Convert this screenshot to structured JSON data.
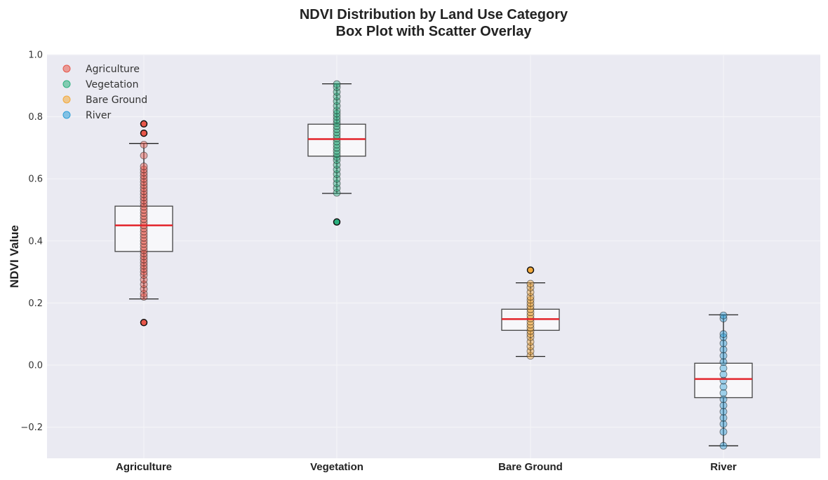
{
  "chart_data": {
    "type": "box",
    "title": "NDVI Distribution by Land Use Category",
    "subtitle": "Box Plot with Scatter Overlay",
    "xlabel": "",
    "ylabel": "NDVI Value",
    "ylim": [
      -0.3,
      1.0
    ],
    "yticks": [
      -0.2,
      0.0,
      0.2,
      0.4,
      0.6,
      0.8,
      1.0
    ],
    "ytick_labels": [
      "−0.2",
      "0.0",
      "0.2",
      "0.4",
      "0.6",
      "0.8",
      "1.0"
    ],
    "grid": true,
    "legend_position": "top-left",
    "categories": [
      "Agriculture",
      "Vegetation",
      "Bare Ground",
      "River"
    ],
    "series": [
      {
        "name": "Agriculture",
        "color": "#e8574a",
        "whisker_low": 0.213,
        "q1": 0.366,
        "median": 0.45,
        "q3": 0.512,
        "whisker_high": 0.714,
        "outliers": [
          0.137,
          0.747,
          0.777
        ],
        "points": [
          0.22,
          0.23,
          0.245,
          0.26,
          0.275,
          0.29,
          0.3,
          0.31,
          0.32,
          0.33,
          0.34,
          0.35,
          0.36,
          0.37,
          0.38,
          0.39,
          0.4,
          0.41,
          0.42,
          0.43,
          0.44,
          0.45,
          0.46,
          0.47,
          0.48,
          0.49,
          0.5,
          0.51,
          0.52,
          0.53,
          0.54,
          0.55,
          0.56,
          0.57,
          0.58,
          0.59,
          0.6,
          0.61,
          0.62,
          0.63,
          0.64,
          0.675,
          0.71
        ]
      },
      {
        "name": "Vegetation",
        "color": "#2bb07e",
        "whisker_low": 0.553,
        "q1": 0.673,
        "median": 0.728,
        "q3": 0.776,
        "whisker_high": 0.906,
        "outliers": [
          0.461
        ],
        "points": [
          0.555,
          0.57,
          0.585,
          0.6,
          0.615,
          0.63,
          0.645,
          0.66,
          0.67,
          0.68,
          0.69,
          0.7,
          0.71,
          0.72,
          0.73,
          0.74,
          0.75,
          0.76,
          0.77,
          0.78,
          0.79,
          0.8,
          0.81,
          0.82,
          0.835,
          0.85,
          0.865,
          0.88,
          0.895,
          0.905
        ]
      },
      {
        "name": "Bare Ground",
        "color": "#f2a93b",
        "whisker_low": 0.028,
        "q1": 0.112,
        "median": 0.148,
        "q3": 0.18,
        "whisker_high": 0.265,
        "outliers": [
          0.306
        ],
        "points": [
          0.03,
          0.045,
          0.06,
          0.075,
          0.09,
          0.1,
          0.11,
          0.12,
          0.13,
          0.14,
          0.15,
          0.16,
          0.17,
          0.18,
          0.19,
          0.2,
          0.21,
          0.22,
          0.235,
          0.25,
          0.262
        ]
      },
      {
        "name": "River",
        "color": "#2e9fd8",
        "whisker_low": -0.26,
        "q1": -0.105,
        "median": -0.045,
        "q3": 0.006,
        "whisker_high": 0.162,
        "outliers": [],
        "points": [
          -0.26,
          -0.215,
          -0.19,
          -0.17,
          -0.15,
          -0.13,
          -0.11,
          -0.09,
          -0.07,
          -0.05,
          -0.03,
          -0.01,
          0.01,
          0.03,
          0.05,
          0.07,
          0.09,
          0.1,
          0.15,
          0.16
        ]
      }
    ]
  }
}
